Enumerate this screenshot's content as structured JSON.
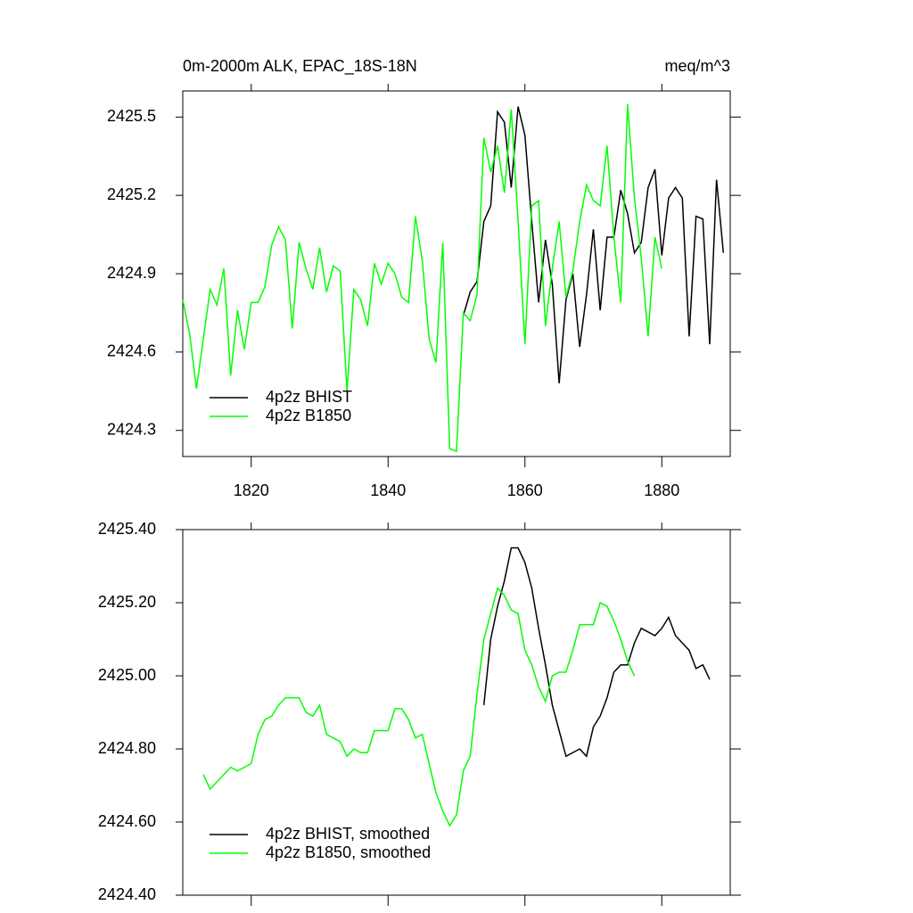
{
  "chart_data": [
    {
      "type": "line",
      "title": "0m-2000m ALK, EPAC_18S-18N",
      "units": "meq/m^3",
      "xlim": [
        1810,
        1890
      ],
      "xticks": [
        1820,
        1840,
        1860,
        1880
      ],
      "show_xtick_labels": true,
      "ylim": [
        2424.2,
        2425.6
      ],
      "yticks": [
        2424.3,
        2424.6,
        2424.9,
        2425.2,
        2425.5
      ],
      "legend": "lower left",
      "series": [
        {
          "name": "4p2z BHIST",
          "color": "#000000",
          "x": [
            1851,
            1852,
            1853,
            1854,
            1855,
            1856,
            1857,
            1858,
            1859,
            1860,
            1861,
            1862,
            1863,
            1864,
            1865,
            1866,
            1867,
            1868,
            1869,
            1870,
            1871,
            1872,
            1873,
            1874,
            1875,
            1876,
            1877,
            1878,
            1879,
            1880,
            1881,
            1882,
            1883,
            1884,
            1885,
            1886,
            1887,
            1888,
            1889
          ],
          "values": [
            2424.74,
            2424.83,
            2424.87,
            2425.1,
            2425.16,
            2425.52,
            2425.48,
            2425.23,
            2425.54,
            2425.43,
            2425.1,
            2424.79,
            2425.03,
            2424.86,
            2424.48,
            2424.8,
            2424.9,
            2424.62,
            2424.82,
            2425.07,
            2424.76,
            2425.04,
            2425.04,
            2425.22,
            2425.13,
            2424.98,
            2425.02,
            2425.23,
            2425.3,
            2424.97,
            2425.19,
            2425.23,
            2425.19,
            2424.66,
            2425.12,
            2425.11,
            2424.63,
            2425.26,
            2424.98
          ]
        },
        {
          "name": "4p2z B1850",
          "color": "#00ff00",
          "x": [
            1810,
            1811,
            1812,
            1813,
            1814,
            1815,
            1816,
            1817,
            1818,
            1819,
            1820,
            1821,
            1822,
            1823,
            1824,
            1825,
            1826,
            1827,
            1828,
            1829,
            1830,
            1831,
            1832,
            1833,
            1834,
            1835,
            1836,
            1837,
            1838,
            1839,
            1840,
            1841,
            1842,
            1843,
            1844,
            1845,
            1846,
            1847,
            1848,
            1849,
            1850,
            1851,
            1852,
            1853,
            1854,
            1855,
            1856,
            1857,
            1858,
            1859,
            1860,
            1861,
            1862,
            1863,
            1864,
            1865,
            1866,
            1867,
            1868,
            1869,
            1870,
            1871,
            1872,
            1873,
            1874,
            1875,
            1876,
            1877,
            1878,
            1879,
            1880
          ],
          "values": [
            2424.8,
            2424.67,
            2424.46,
            2424.65,
            2424.84,
            2424.78,
            2424.92,
            2424.51,
            2424.76,
            2424.61,
            2424.79,
            2424.79,
            2424.85,
            2425.01,
            2425.08,
            2425.03,
            2424.69,
            2425.02,
            2424.92,
            2424.84,
            2425.0,
            2424.83,
            2424.93,
            2424.91,
            2424.45,
            2424.84,
            2424.8,
            2424.7,
            2424.94,
            2424.86,
            2424.94,
            2424.9,
            2424.81,
            2424.79,
            2425.12,
            2424.95,
            2424.65,
            2424.56,
            2425.02,
            2424.23,
            2424.22,
            2424.75,
            2424.72,
            2424.82,
            2425.42,
            2425.29,
            2425.39,
            2425.21,
            2425.53,
            2425.1,
            2424.63,
            2425.16,
            2425.18,
            2424.7,
            2424.92,
            2425.1,
            2424.81,
            2424.91,
            2425.1,
            2425.24,
            2425.18,
            2425.16,
            2425.39,
            2425.04,
            2424.79,
            2425.55,
            2425.19,
            2424.96,
            2424.66,
            2425.04,
            2424.92
          ]
        }
      ]
    },
    {
      "type": "line",
      "xlim": [
        1810,
        1890
      ],
      "xticks": [
        1820,
        1840,
        1860,
        1880
      ],
      "show_xtick_labels": false,
      "ylim": [
        2424.4,
        2425.4
      ],
      "yticks": [
        {
          "value": 2424.4,
          "label": "2424.40"
        },
        {
          "value": 2424.6,
          "label": "2424.60"
        },
        {
          "value": 2424.8,
          "label": "2424.80"
        },
        {
          "value": 2425.0,
          "label": "2425.00"
        },
        {
          "value": 2425.2,
          "label": "2425.20"
        },
        {
          "value": 2425.4,
          "label": "2425.40"
        }
      ],
      "legend": "lower left",
      "series": [
        {
          "name": "4p2z BHIST, smoothed",
          "color": "#000000",
          "x": [
            1854,
            1855,
            1856,
            1857,
            1858,
            1859,
            1860,
            1861,
            1862,
            1863,
            1864,
            1865,
            1866,
            1867,
            1868,
            1869,
            1870,
            1871,
            1872,
            1873,
            1874,
            1875,
            1876,
            1877,
            1878,
            1879,
            1880,
            1881,
            1882,
            1883,
            1884,
            1885,
            1886,
            1887
          ],
          "values": [
            2424.92,
            2425.1,
            2425.19,
            2425.26,
            2425.35,
            2425.35,
            2425.31,
            2425.24,
            2425.13,
            2425.03,
            2424.92,
            2424.85,
            2424.78,
            2424.79,
            2424.8,
            2424.78,
            2424.86,
            2424.89,
            2424.94,
            2425.01,
            2425.03,
            2425.03,
            2425.09,
            2425.13,
            2425.12,
            2425.11,
            2425.13,
            2425.16,
            2425.11,
            2425.09,
            2425.07,
            2425.02,
            2425.03,
            2424.99
          ]
        },
        {
          "name": "4p2z B1850, smoothed",
          "color": "#00ff00",
          "x": [
            1813,
            1814,
            1815,
            1816,
            1817,
            1818,
            1819,
            1820,
            1821,
            1822,
            1823,
            1824,
            1825,
            1826,
            1827,
            1828,
            1829,
            1830,
            1831,
            1832,
            1833,
            1834,
            1835,
            1836,
            1837,
            1838,
            1839,
            1840,
            1841,
            1842,
            1843,
            1844,
            1845,
            1846,
            1847,
            1848,
            1849,
            1850,
            1851,
            1852,
            1853,
            1854,
            1855,
            1856,
            1857,
            1858,
            1859,
            1860,
            1861,
            1862,
            1863,
            1864,
            1865,
            1866,
            1867,
            1868,
            1869,
            1870,
            1871,
            1872,
            1873,
            1874,
            1875,
            1876
          ],
          "values": [
            2424.73,
            2424.69,
            2424.71,
            2424.73,
            2424.75,
            2424.74,
            2424.75,
            2424.76,
            2424.84,
            2424.88,
            2424.89,
            2424.92,
            2424.94,
            2424.94,
            2424.94,
            2424.9,
            2424.89,
            2424.92,
            2424.84,
            2424.83,
            2424.82,
            2424.78,
            2424.8,
            2424.79,
            2424.79,
            2424.85,
            2424.85,
            2424.85,
            2424.91,
            2424.91,
            2424.88,
            2424.83,
            2424.84,
            2424.76,
            2424.68,
            2424.63,
            2424.59,
            2424.62,
            2424.74,
            2424.78,
            2424.95,
            2425.1,
            2425.17,
            2425.24,
            2425.22,
            2425.18,
            2425.17,
            2425.07,
            2425.03,
            2424.97,
            2424.93,
            2425.0,
            2425.01,
            2425.01,
            2425.07,
            2425.14,
            2425.14,
            2425.14,
            2425.2,
            2425.19,
            2425.15,
            2425.1,
            2425.04,
            2425.0
          ]
        }
      ]
    }
  ]
}
